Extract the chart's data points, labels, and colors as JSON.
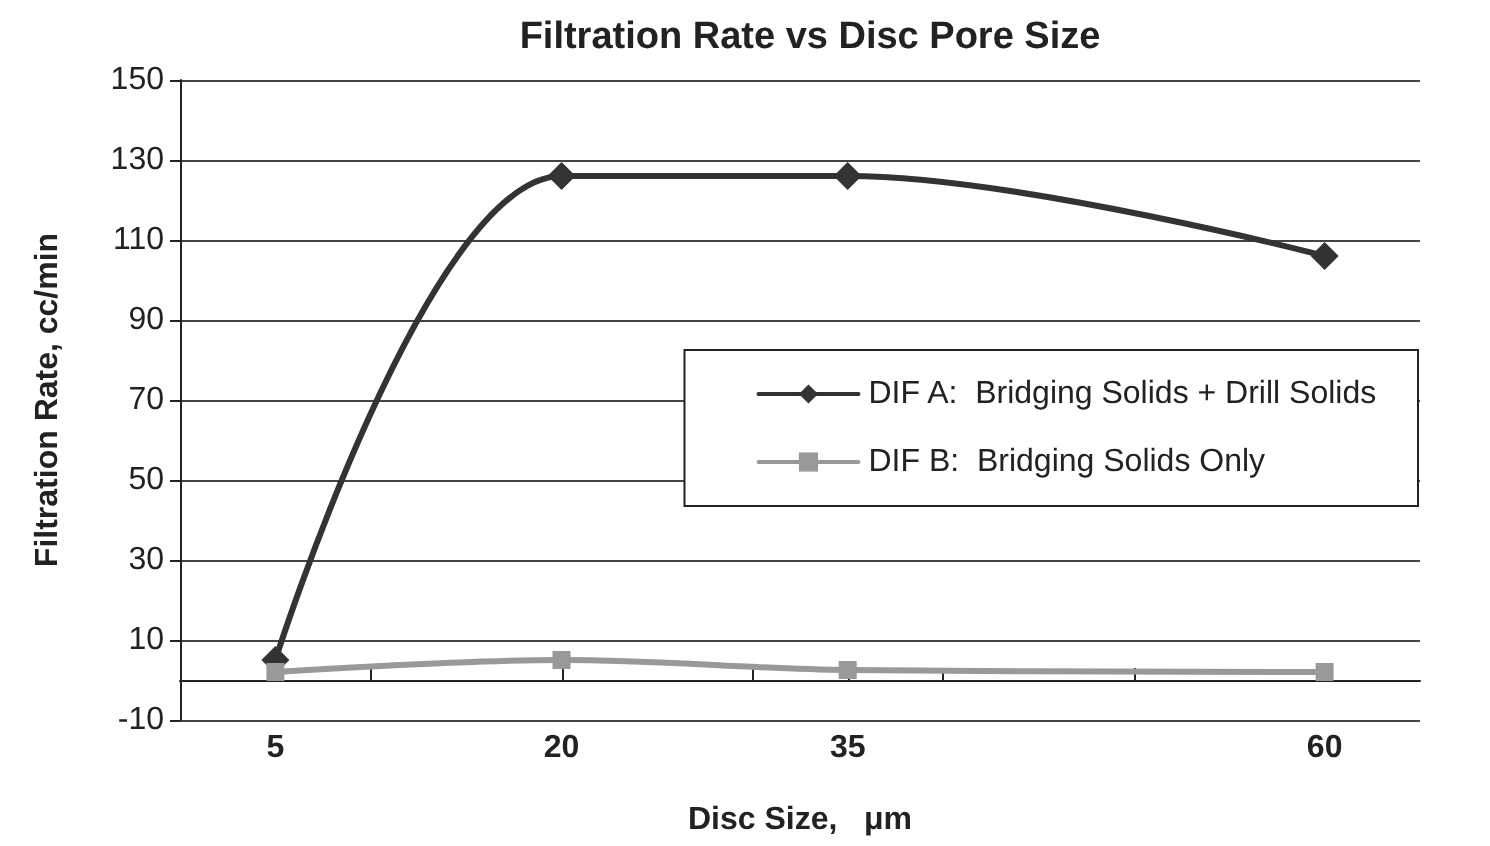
{
  "chart_data": {
    "type": "line",
    "title": "Filtration Rate vs Disc Pore Size",
    "xlabel": "Disc Size,   μm",
    "ylabel": "Filtration Rate, cc/min",
    "x": [
      5,
      20,
      35,
      60
    ],
    "series": [
      {
        "name": "DIF A:  Bridging Solids + Drill Solids",
        "color": "#333333",
        "marker": "diamond",
        "values": [
          5,
          126,
          126,
          106
        ]
      },
      {
        "name": "DIF B:  Bridging Solids Only",
        "color": "#999999",
        "marker": "square",
        "values": [
          2,
          5,
          2.5,
          2
        ]
      }
    ],
    "xlim": [
      0,
      65
    ],
    "xticks": [
      5,
      {
        "value": 10,
        "label": null
      },
      20,
      {
        "value": 30,
        "label": null
      },
      35,
      {
        "value": 40,
        "label": null
      },
      {
        "value": 50,
        "label": null
      },
      60
    ],
    "ylim": [
      -10,
      150
    ],
    "yticks": [
      -10,
      10,
      30,
      50,
      70,
      90,
      110,
      130,
      150
    ],
    "grid": "y",
    "legend": "right",
    "line_style": "solid"
  }
}
